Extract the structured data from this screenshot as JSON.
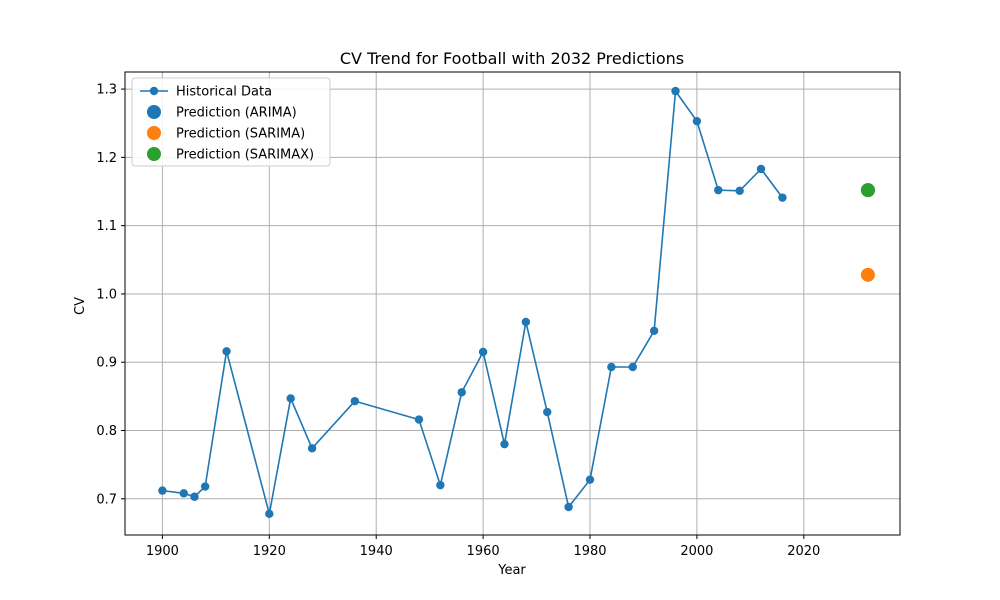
{
  "chart_data": {
    "type": "line",
    "title": "CV Trend for Football with 2032 Predictions",
    "xlabel": "Year",
    "ylabel": "CV",
    "xlim": [
      1893,
      2038
    ],
    "ylim": [
      0.647,
      1.325
    ],
    "xticks": [
      1900,
      1920,
      1940,
      1960,
      1980,
      2000,
      2020
    ],
    "yticks": [
      0.7,
      0.8,
      0.9,
      1.0,
      1.1,
      1.2,
      1.3
    ],
    "grid": true,
    "legend_position": "top-left",
    "series": [
      {
        "name": "Historical Data",
        "kind": "line-marker",
        "color": "#1f77b4",
        "x": [
          1900,
          1904,
          1906,
          1908,
          1912,
          1920,
          1924,
          1928,
          1936,
          1948,
          1952,
          1956,
          1960,
          1964,
          1968,
          1972,
          1976,
          1980,
          1984,
          1988,
          1992,
          1996,
          2000,
          2004,
          2008,
          2012,
          2016
        ],
        "y": [
          0.712,
          0.708,
          0.703,
          0.718,
          0.916,
          0.678,
          0.847,
          0.774,
          0.843,
          0.816,
          0.72,
          0.856,
          0.915,
          0.78,
          0.959,
          0.827,
          0.688,
          0.728,
          0.893,
          0.893,
          0.946,
          1.297,
          1.253,
          1.152,
          1.151,
          1.183,
          1.141
        ]
      },
      {
        "name": "Prediction (ARIMA)",
        "kind": "point",
        "color": "#1f77b4",
        "x": [
          2032
        ],
        "y": [
          1.152
        ]
      },
      {
        "name": "Prediction (SARIMA)",
        "kind": "point",
        "color": "#ff7f0e",
        "x": [
          2032
        ],
        "y": [
          1.028
        ]
      },
      {
        "name": "Prediction (SARIMAX)",
        "kind": "point",
        "color": "#2ca02c",
        "x": [
          2032
        ],
        "y": [
          1.152
        ]
      }
    ]
  }
}
